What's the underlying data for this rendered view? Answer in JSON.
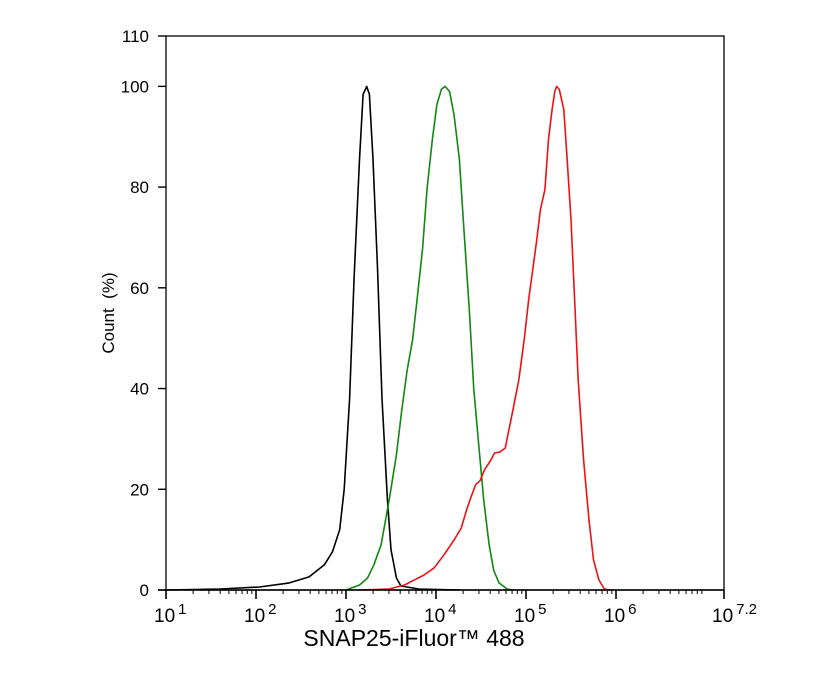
{
  "chart_data": {
    "type": "line",
    "title": "",
    "xlabel": "SNAP25-iFluor™ 488",
    "ylabel": "Count  (%)",
    "x_scale": "log10",
    "xlim_log10": [
      1,
      7.2
    ],
    "ylim": [
      0,
      110
    ],
    "x_ticks": [
      {
        "base": "10",
        "exp": "1",
        "value": 1
      },
      {
        "base": "10",
        "exp": "2",
        "value": 2
      },
      {
        "base": "10",
        "exp": "3",
        "value": 3
      },
      {
        "base": "10",
        "exp": "4",
        "value": 4
      },
      {
        "base": "10",
        "exp": "5",
        "value": 5
      },
      {
        "base": "10",
        "exp": "6",
        "value": 6
      },
      {
        "base": "10",
        "exp": "7.2",
        "value": 7.2
      }
    ],
    "y_ticks": [
      "0",
      "20",
      "40",
      "60",
      "80",
      "100",
      "110"
    ],
    "grid": false,
    "series": [
      {
        "name": "black",
        "color": "#000000",
        "log10_x": [
          1.0,
          1.6,
          2.04,
          2.37,
          2.59,
          2.76,
          2.85,
          2.93,
          2.98,
          3.04,
          3.09,
          3.15,
          3.19,
          3.23,
          3.26,
          3.3,
          3.35,
          3.4,
          3.46,
          3.5,
          3.56,
          3.61,
          3.81,
          4.26
        ],
        "y": [
          0,
          0.2,
          0.6,
          1.4,
          2.6,
          5,
          7.6,
          12,
          20,
          38,
          62,
          85.5,
          98.4,
          100,
          98.4,
          85.5,
          64,
          38,
          18,
          8,
          2.4,
          0.8,
          0.2,
          0
        ]
      },
      {
        "name": "green",
        "color": "#118811",
        "log10_x": [
          3.0,
          3.15,
          3.24,
          3.31,
          3.39,
          3.48,
          3.56,
          3.62,
          3.68,
          3.74,
          3.79,
          3.85,
          3.9,
          3.96,
          4.01,
          4.06,
          4.1,
          4.15,
          4.2,
          4.26,
          4.31,
          4.37,
          4.42,
          4.48,
          4.53,
          4.59,
          4.64,
          4.7,
          4.79,
          4.86
        ],
        "y": [
          0,
          1.0,
          2.4,
          5.0,
          9.0,
          17.9,
          26.8,
          35.8,
          43.7,
          49.7,
          57.7,
          67.6,
          79.5,
          89.5,
          96.4,
          99.4,
          100,
          99.0,
          94.4,
          85.5,
          71.6,
          55.7,
          39.8,
          27.8,
          17.9,
          9.0,
          4.0,
          1.4,
          0.2,
          0
        ]
      },
      {
        "name": "red",
        "color": "#ee1111",
        "log10_x": [
          3.15,
          3.48,
          3.65,
          3.76,
          3.87,
          3.98,
          4.09,
          4.2,
          4.28,
          4.34,
          4.39,
          4.44,
          4.49,
          4.54,
          4.61,
          4.65,
          4.71,
          4.77,
          4.81,
          4.86,
          4.92,
          4.98,
          5.03,
          5.09,
          5.12,
          5.16,
          5.21,
          5.25,
          5.29,
          5.32,
          5.34,
          5.37,
          5.42,
          5.45,
          5.5,
          5.54,
          5.58,
          5.64,
          5.7,
          5.75,
          5.81,
          5.87,
          5.94
        ],
        "y": [
          0,
          0.2,
          1.0,
          2.0,
          3.0,
          4.4,
          7.0,
          9.9,
          12.3,
          15.9,
          18.5,
          20.9,
          21.7,
          23.9,
          25.8,
          27.2,
          27.4,
          28.2,
          31.8,
          36.2,
          41.7,
          49.7,
          57.7,
          65.6,
          69.6,
          75.5,
          79.5,
          89.5,
          95.4,
          99.0,
          100,
          99.4,
          95.4,
          87.5,
          73.6,
          57.7,
          41.7,
          25.8,
          13.9,
          6.0,
          2.0,
          0.2,
          0
        ]
      }
    ]
  }
}
